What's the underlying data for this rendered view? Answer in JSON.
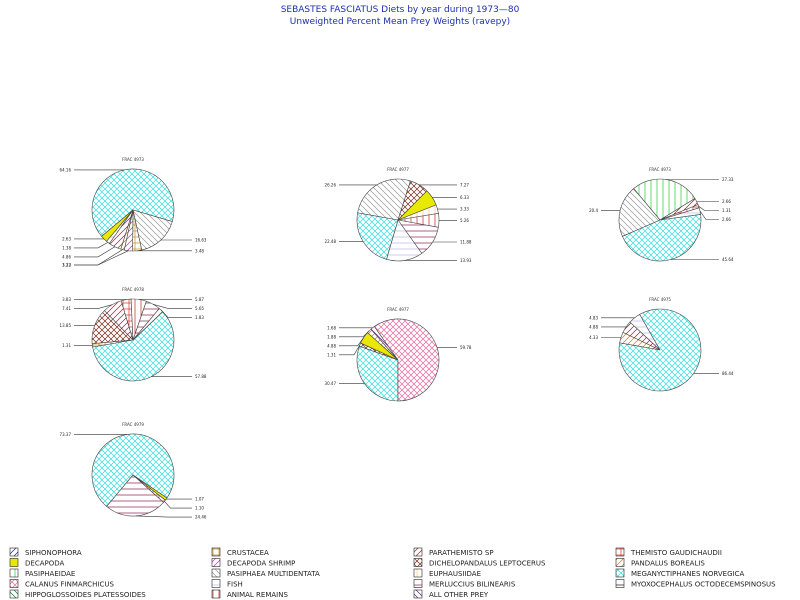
{
  "title": "SEBASTES FASCIATUS Diets by year during 1973—80",
  "subtitle": "Unweighted Percent Mean Prey Weights (ravepy)",
  "chart_data": {
    "type": "pie",
    "categories": [
      "SIPHONOPHORA",
      "DECAPODA",
      "PASIPHAEIDAE",
      "CALANUS FINMARCHICUS",
      "HIPPOGLOSSOIDES PLATESSOIDES",
      "CRUSTACEA",
      "DECAPODA SHRIMP",
      "PASIPHAEA MULTIDENTATA",
      "FISH",
      "ANIMAL REMAINS",
      "PARATHEMISTO SP",
      "DICHELOPANDALUS LEPTOCERUS",
      "EUPHAUSIIDAE",
      "MERLUCCIUS BILINEARIS",
      "ALL OTHER PREY",
      "THEMISTO GAUDICHAUDII",
      "PANDALUS BOREALIS",
      "MEGANYCTIPHANES NORVEGICA",
      "MYOXOCEPHALUS OCTODECEMSPINOSUS"
    ],
    "colors": {
      "SIPHONOPHORA": "#1a237e",
      "DECAPODA": "#e8e800",
      "PASIPHAEIDAE": "#22cc33",
      "CALANUS FINMARCHICUS": "#e86a9a",
      "HIPPOGLOSSOIDES PLATESSOIDES": "#157a2a",
      "CRUSTACEA": "#c98a1b",
      "DECAPODA SHRIMP": "#cc33cc",
      "PASIPHAEA MULTIDENTATA": "#9a9a9a",
      "FISH": "#b8b8ea",
      "ANIMAL REMAINS": "#c82020",
      "PARATHEMISTO SP": "#a02040",
      "DICHELOPANDALUS LEPTOCERUS": "#7a2a1a",
      "EUPHAUSIIDAE": "#f2cc80",
      "MERLUCCIUS BILINEARIS": "#8a2050",
      "ALL OTHER PREY": "#5a2a80",
      "THEMISTO GAUDICHAUDII": "#e03020",
      "PANDALUS BOREALIS": "#e07a10",
      "MEGANYCTIPHANES NORVEGICA": "#33dddd",
      "MYOXOCEPHALUS OCTODECEMSPINOSUS": "#111111"
    },
    "pies": [
      {
        "title": "FRAC 4973",
        "slices": [
          {
            "prey": "MEGANYCTIPHANES NORVEGICA",
            "value": 64.16,
            "label": "64.16"
          },
          {
            "prey": "PASIPHAEA MULTIDENTATA",
            "value": 16.63,
            "label": "16.63"
          },
          {
            "prey": "CRUSTACEA",
            "value": 3.48,
            "label": "3.48"
          },
          {
            "prey": "DECAPODA SHRIMP",
            "value": 3.22,
            "label": "3.22"
          },
          {
            "prey": "PANDALUS BOREALIS",
            "value": 1.33,
            "label": "1.33"
          },
          {
            "prey": "PARATHEMISTO SP",
            "value": 4.86,
            "label": "4.86"
          },
          {
            "prey": "FISH",
            "value": 1.38,
            "label": "1.38"
          },
          {
            "prey": "DECAPODA",
            "value": 2.63,
            "label": "2.63"
          }
        ]
      },
      {
        "title": "FRAC 4977",
        "slices": [
          {
            "prey": "PASIPHAEA MULTIDENTATA",
            "value": 26.26,
            "label": "26.26"
          },
          {
            "prey": "DICHELOPANDALUS LEPTOCERUS",
            "value": 7.27,
            "label": "7.27"
          },
          {
            "prey": "DECAPODA",
            "value": 6.33,
            "label": "6.33"
          },
          {
            "prey": "EUPHAUSIIDAE",
            "value": 3.33,
            "label": "3.33"
          },
          {
            "prey": "ANIMAL REMAINS",
            "value": 5.26,
            "label": "5.26"
          },
          {
            "prey": "MERLUCCIUS BILINEARIS",
            "value": 11.88,
            "label": "11.88"
          },
          {
            "prey": "FISH",
            "value": 13.93,
            "label": "13.93"
          },
          {
            "prey": "MEGANYCTIPHANES NORVEGICA",
            "value": 22.48,
            "label": "22.48"
          }
        ]
      },
      {
        "title": "FRAC 4973",
        "slices": [
          {
            "prey": "PASIPHAEIDAE",
            "value": 27.33,
            "label": "27.33"
          },
          {
            "prey": "PARATHEMISTO SP",
            "value": 2.66,
            "label": "2.66"
          },
          {
            "prey": "THEMISTO GAUDICHAUDII",
            "value": 1.31,
            "label": "1.31"
          },
          {
            "prey": "FISH",
            "value": 2.66,
            "label": "2.66"
          },
          {
            "prey": "MEGANYCTIPHANES NORVEGICA",
            "value": 45.64,
            "label": "45.64"
          },
          {
            "prey": "PASIPHAEA MULTIDENTATA",
            "value": 20.4,
            "label": "20.4"
          }
        ]
      },
      {
        "title": "FRAC 4978",
        "slices": [
          {
            "prey": "CRUSTACEA",
            "value": 1.31,
            "label": "1.31"
          },
          {
            "prey": "DICHELOPANDALUS LEPTOCERUS",
            "value": 13.85,
            "label": "13.85"
          },
          {
            "prey": "PARATHEMISTO SP",
            "value": 7.41,
            "label": "7.41"
          },
          {
            "prey": "THEMISTO GAUDICHAUDII",
            "value": 3.83,
            "label": "3.83"
          },
          {
            "prey": "ANIMAL REMAINS",
            "value": 5.87,
            "label": "5.87"
          },
          {
            "prey": "MERLUCCIUS BILINEARIS",
            "value": 5.65,
            "label": "5.65"
          },
          {
            "prey": "PANDALUS BOREALIS",
            "value": 1.83,
            "label": "1.83"
          },
          {
            "prey": "MEGANYCTIPHANES NORVEGICA",
            "value": 57.88,
            "label": "57.88"
          }
        ]
      },
      {
        "title": "FRAC 4977",
        "slices": [
          {
            "prey": "MEGANYCTIPHANES NORVEGICA",
            "value": 30.47,
            "label": "30.47"
          },
          {
            "prey": "DICHELOPANDALUS LEPTOCERUS",
            "value": 1.31,
            "label": "1.31"
          },
          {
            "prey": "DECAPODA",
            "value": 4.88,
            "label": "4.88"
          },
          {
            "prey": "PANDALUS BOREALIS",
            "value": 1.88,
            "label": "1.88"
          },
          {
            "prey": "ALL OTHER PREY",
            "value": 1.68,
            "label": "1.68"
          },
          {
            "prey": "CALANUS FINMARCHICUS",
            "value": 59.78,
            "label": "59.78"
          }
        ]
      },
      {
        "title": "FRAC 4975",
        "slices": [
          {
            "prey": "PANDALUS BOREALIS",
            "value": 4.33,
            "label": "4.33"
          },
          {
            "prey": "PARATHEMISTO SP",
            "value": 4.88,
            "label": "4.88"
          },
          {
            "prey": "FISH",
            "value": 4.83,
            "label": "4.83"
          },
          {
            "prey": "MEGANYCTIPHANES NORVEGICA",
            "value": 86.44,
            "label": "86.44"
          }
        ]
      },
      {
        "title": "FRAC 4979",
        "slices": [
          {
            "prey": "MEGANYCTIPHANES NORVEGICA",
            "value": 73.37,
            "label": "73.37"
          },
          {
            "prey": "DECAPODA",
            "value": 1.07,
            "label": "1.07"
          },
          {
            "prey": "THEMISTO GAUDICHAUDII",
            "value": 1.1,
            "label": "1.10"
          },
          {
            "prey": "MERLUCCIUS BILINEARIS",
            "value": 24.46,
            "label": "24.46"
          }
        ]
      }
    ],
    "legend": {
      "placement": "bottom",
      "columns": [
        [
          "SIPHONOPHORA",
          "DECAPODA",
          "PASIPHAEIDAE",
          "CALANUS FINMARCHICUS",
          "HIPPOGLOSSOIDES PLATESSOIDES"
        ],
        [
          "CRUSTACEA",
          "DECAPODA SHRIMP",
          "PASIPHAEA MULTIDENTATA",
          "FISH",
          "ANIMAL REMAINS"
        ],
        [
          "PARATHEMISTO SP",
          "DICHELOPANDALUS LEPTOCERUS",
          "EUPHAUSIIDAE",
          "MERLUCCIUS BILINEARIS",
          "ALL OTHER PREY"
        ],
        [
          "THEMISTO GAUDICHAUDII",
          "PANDALUS BOREALIS",
          "MEGANYCTIPHANES NORVEGICA",
          "MYOXOCEPHALUS OCTODECEMSPINOSUS"
        ]
      ]
    }
  }
}
